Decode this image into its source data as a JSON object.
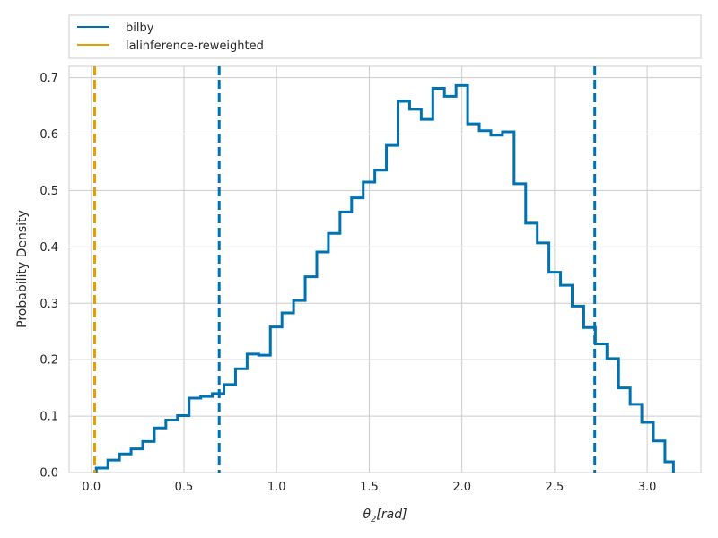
{
  "chart_data": {
    "type": "step-histogram",
    "xlabel_symbol": "θ",
    "xlabel_sub": "2",
    "xlabel_unit": "[rad]",
    "ylabel": "Probability Density",
    "xlim": [
      -0.12,
      3.29
    ],
    "ylim": [
      0,
      0.72
    ],
    "xticks": [
      0.0,
      0.5,
      1.0,
      1.5,
      2.0,
      2.5,
      3.0
    ],
    "xtick_labels": [
      "0.0",
      "0.5",
      "1.0",
      "1.5",
      "2.0",
      "2.5",
      "3.0"
    ],
    "yticks": [
      0.0,
      0.1,
      0.2,
      0.3,
      0.4,
      0.5,
      0.6,
      0.7
    ],
    "ytick_labels": [
      "0.0",
      "0.1",
      "0.2",
      "0.3",
      "0.4",
      "0.5",
      "0.6",
      "0.7"
    ],
    "grid": true,
    "legend_position": "above plot",
    "series": [
      {
        "name": "bilby",
        "color": "#0072b2",
        "bin_edges": [
          0.0266,
          0.0892,
          0.1519,
          0.2145,
          0.2772,
          0.3398,
          0.4024,
          0.4651,
          0.5277,
          0.5904,
          0.653,
          0.7157,
          0.7783,
          0.8409,
          0.9036,
          0.9662,
          1.0289,
          1.0915,
          1.1541,
          1.2168,
          1.2794,
          1.3421,
          1.4047,
          1.4674,
          1.53,
          1.5926,
          1.6553,
          1.7179,
          1.7806,
          1.8432,
          1.9058,
          1.9685,
          2.0311,
          2.0938,
          2.1564,
          2.2191,
          2.2817,
          2.3443,
          2.407,
          2.4696,
          2.5323,
          2.5949,
          2.6575,
          2.7202,
          2.7828,
          2.8455,
          2.9081,
          2.9708,
          3.0334,
          3.096,
          3.1416
        ],
        "values": [
          0.008,
          0.022,
          0.033,
          0.042,
          0.055,
          0.079,
          0.093,
          0.101,
          0.132,
          0.135,
          0.14,
          0.156,
          0.184,
          0.21,
          0.208,
          0.258,
          0.283,
          0.305,
          0.347,
          0.391,
          0.424,
          0.462,
          0.487,
          0.515,
          0.536,
          0.58,
          0.658,
          0.644,
          0.626,
          0.681,
          0.667,
          0.686,
          0.618,
          0.606,
          0.598,
          0.604,
          0.512,
          0.442,
          0.407,
          0.355,
          0.332,
          0.295,
          0.257,
          0.228,
          0.202,
          0.15,
          0.121,
          0.089,
          0.056,
          0.019
        ],
        "vlines": [
          0.69,
          2.717
        ]
      },
      {
        "name": "lalinference-reweighted",
        "color": "#e69f00",
        "vlines": [
          0.018
        ]
      }
    ]
  }
}
